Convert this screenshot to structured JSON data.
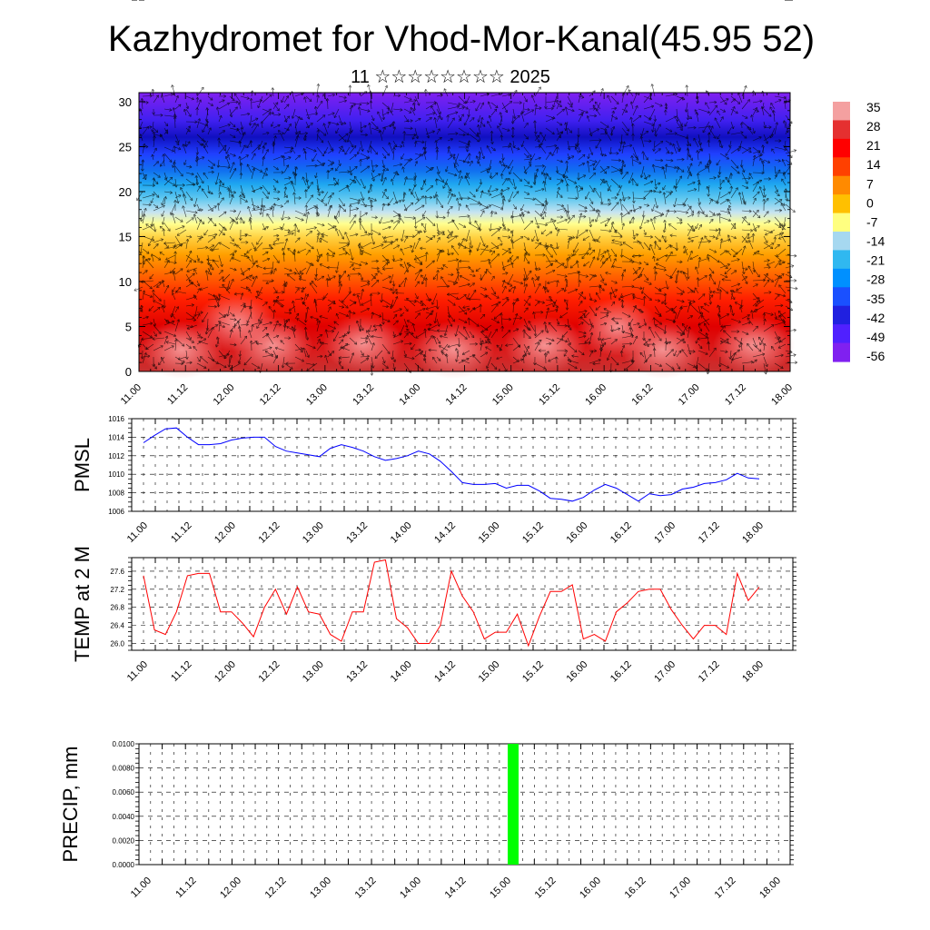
{
  "title": "Kazhydromet for Vhod-Mor-Kanal(45.95 52)",
  "subtitle": "11 ☆☆☆☆☆☆☆☆ 2025",
  "chart_data": [
    {
      "type": "heatmap",
      "name": "",
      "y_ticks": [
        "0",
        "5",
        "10",
        "15",
        "20",
        "25",
        "30"
      ],
      "ylim": [
        0,
        31
      ],
      "x_ticks": [
        "11.00",
        "11.12",
        "12.00",
        "12.12",
        "13.00",
        "13.12",
        "14.00",
        "14.12",
        "15.00",
        "15.12",
        "16.00",
        "16.12",
        "17.00",
        "17.12",
        "18.00"
      ],
      "colorbar": {
        "labels": [
          "35",
          "28",
          "21",
          "14",
          "7",
          "0",
          "-7",
          "-14",
          "-21",
          "-28",
          "-35",
          "-42",
          "-49",
          "-56"
        ],
        "colors": [
          "#f4a0a0",
          "#e53030",
          "#ff0000",
          "#ff4000",
          "#ff8a00",
          "#ffc000",
          "#ffff80",
          "#a6d8f0",
          "#30b8f0",
          "#0090ff",
          "#1a50ff",
          "#2020e0",
          "#5020ff",
          "#8020f0"
        ]
      },
      "overlay": "wind-vectors"
    },
    {
      "type": "line",
      "ylabel": "PMSL",
      "ylim": [
        1006,
        1016
      ],
      "y_ticks": [
        "1016",
        "1014",
        "1012",
        "1010",
        "1008",
        "1006"
      ],
      "x_ticks": [
        "11.00",
        "11.12",
        "12.00",
        "12.12",
        "13.00",
        "13.12",
        "14.00",
        "14.12",
        "15.00",
        "15.12",
        "16.00",
        "16.12",
        "17.00",
        "17.12",
        "18.00"
      ],
      "color": "#0000ff",
      "values": [
        1013.4,
        1014.2,
        1014.9,
        1015.0,
        1014.0,
        1013.2,
        1013.2,
        1013.3,
        1013.7,
        1013.9,
        1014.0,
        1014.0,
        1013.0,
        1012.5,
        1012.3,
        1012.1,
        1011.9,
        1012.8,
        1013.2,
        1012.9,
        1012.5,
        1011.9,
        1011.5,
        1011.7,
        1012.0,
        1012.5,
        1012.2,
        1011.4,
        1010.3,
        1009.1,
        1008.9,
        1008.9,
        1009.0,
        1008.5,
        1008.8,
        1008.8,
        1008.2,
        1007.4,
        1007.3,
        1007.1,
        1007.5,
        1008.3,
        1008.9,
        1008.5,
        1007.8,
        1007.1,
        1007.9,
        1007.7,
        1007.8,
        1008.4,
        1008.6,
        1009.0,
        1009.1,
        1009.4,
        1010.1,
        1009.6,
        1009.5
      ]
    },
    {
      "type": "line",
      "ylabel": "TEMP at 2 M",
      "ylim": [
        25.85,
        27.9
      ],
      "y_ticks": [
        "27.6",
        "27.2",
        "26.8",
        "26.4",
        "26.0"
      ],
      "x_ticks": [
        "11.00",
        "11.12",
        "12.00",
        "12.12",
        "13.00",
        "13.12",
        "14.00",
        "14.12",
        "15.00",
        "15.12",
        "16.00",
        "16.12",
        "17.00",
        "17.12",
        "18.00"
      ],
      "color": "#ff0000",
      "values": [
        27.5,
        26.3,
        26.2,
        26.7,
        27.5,
        27.55,
        27.55,
        26.7,
        26.7,
        26.45,
        26.15,
        26.8,
        27.2,
        26.65,
        27.25,
        26.7,
        26.65,
        26.2,
        26.05,
        26.7,
        26.7,
        27.8,
        27.85,
        26.55,
        26.35,
        26.0,
        26.0,
        26.4,
        27.6,
        27.05,
        26.7,
        26.1,
        26.25,
        26.25,
        26.65,
        25.95,
        26.6,
        27.15,
        27.15,
        27.3,
        26.1,
        26.2,
        26.05,
        26.7,
        26.9,
        27.15,
        27.2,
        27.2,
        26.75,
        26.4,
        26.1,
        26.4,
        26.4,
        26.2,
        27.55,
        26.95,
        27.25
      ]
    },
    {
      "type": "bar",
      "ylabel": "PRECIP, mm",
      "ylim": [
        0,
        0.01
      ],
      "y_ticks": [
        "0.0100",
        "0.0080",
        "0.0060",
        "0.0040",
        "0.0020",
        "0.0000"
      ],
      "x_ticks": [
        "11.00",
        "11.12",
        "12.00",
        "12.12",
        "13.00",
        "13.12",
        "14.00",
        "14.12",
        "15.00",
        "15.12",
        "16.00",
        "16.12",
        "17.00",
        "17.12",
        "18.00"
      ],
      "color": "#00ff00",
      "bars": [
        {
          "x": 32.3,
          "value": 0.01
        }
      ]
    }
  ]
}
